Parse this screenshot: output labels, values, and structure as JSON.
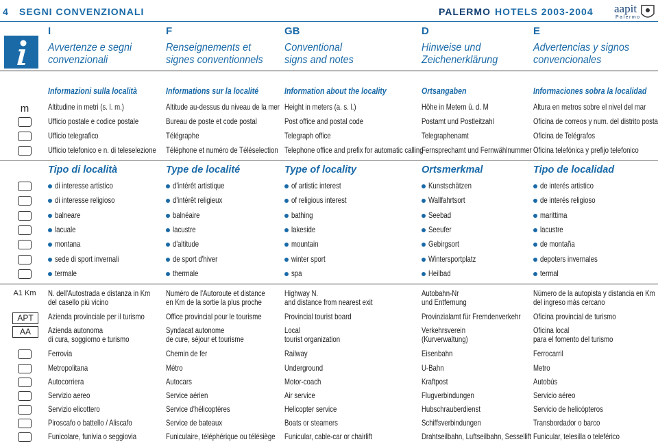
{
  "header": {
    "page_number": "4",
    "section_title": "SEGNI CONVENZIONALI",
    "publication_city": "PALERMO",
    "publication_rest": "HOTELS 2003-2004",
    "logo_text": "aapit",
    "logo_sub": "Palermo"
  },
  "languages": [
    {
      "code": "I",
      "title": "Avvertenze e segni\nconvenzionali"
    },
    {
      "code": "F",
      "title": "Renseignements et\nsignes conventionnels"
    },
    {
      "code": "GB",
      "title": "Conventional\nsigns and notes"
    },
    {
      "code": "D",
      "title": "Hinweise und\nZeichenerklärung"
    },
    {
      "code": "E",
      "title": "Advertencias y signos\nconvencionales"
    }
  ],
  "sections": [
    {
      "headings": [
        "Informazioni sulla località",
        "Informations sur la localité",
        "Information about the locality",
        "Ortsangaben",
        "Informaciones sobra la localidad"
      ],
      "rows": [
        {
          "symbol": "m",
          "cells": [
            "Altitudine in metri (s. l. m.)",
            "Altitude au-dessus du niveau de la mer",
            "Height in meters (a. s. l.)",
            "Höhe in Metern ü. d. M",
            "Altura en metros sobre el nivel del mar"
          ]
        },
        {
          "cells": [
            "Ufficio postale e codice postale",
            "Bureau de poste et code postal",
            "Post office and postal code",
            "Postamt und Postleitzahl",
            "Oficina de correos y num. del distrito postal"
          ]
        },
        {
          "cells": [
            "Ufficio telegrafico",
            "Télégraphe",
            "Telegraph office",
            "Telegraphenamt",
            "Oficina de Telégrafos"
          ]
        },
        {
          "cells": [
            "Ufficio telefonico e n. di teleselezione",
            "Téléphone et numéro de Téléselection",
            "Telephone office and prefix for automatic calling",
            "Fernsprechamt und Fernwählnummer",
            "Oficina telefónica y prefijo telefonico"
          ]
        }
      ]
    },
    {
      "headings": [
        "Tipo di località",
        "Type de localité",
        "Type of locality",
        "Ortsmerkmal",
        "Tipo de localidad"
      ],
      "bulleted": true,
      "rows": [
        {
          "cells": [
            "di interesse artistico",
            "d'intérêt artistique",
            "of artistic interest",
            "Kunstschätzen",
            "de interés artistico"
          ]
        },
        {
          "cells": [
            "di interesse religioso",
            "d'intérêt religieux",
            "of religious interest",
            "Wallfahrtsort",
            "de interés religioso"
          ]
        },
        {
          "cells": [
            "balneare",
            "balnéaire",
            "bathing",
            "Seebad",
            "marittima"
          ]
        },
        {
          "cells": [
            "lacuale",
            "lacustre",
            "lakeside",
            "Seeufer",
            "lacustre"
          ]
        },
        {
          "cells": [
            "montana",
            "d'altitude",
            "mountain",
            "Gebirgsort",
            "de montaña"
          ]
        },
        {
          "cells": [
            "sede di sport invernali",
            "de sport d'hiver",
            "winter sport",
            "Wintersportplatz",
            "depoters invernales"
          ]
        },
        {
          "cells": [
            "termale",
            "thermale",
            "spa",
            "Heilbad",
            "termal"
          ]
        }
      ]
    },
    {
      "rows": [
        {
          "symbol": "A1 Km",
          "cells": [
            "N. dell'Autostrada e distanza in Km\ndel casello più vicino",
            "Numéro de l'Autoroute et distance\nen Km de la sortie la plus proche",
            "Highway N.\nand distance from nearest exit",
            "Autobahn-Nr\nund Entfernung",
            "Número de la autopista y distancia en Km\ndel ingreso más cercano"
          ]
        },
        {
          "symbol": "APT",
          "cells": [
            "Azienda provinciale per il turismo",
            "Office provincial pour le tourisme",
            "Provincial tourist board",
            "Provinzialamt für Fremdenverkehr",
            "Oficina provincial de turismo"
          ]
        },
        {
          "symbol": "AA",
          "cells": [
            "Azienda autonoma\ndi cura, soggiorno e turismo",
            "Syndacat autonome\nde cure, séjour et tourisme",
            "Local\ntourist organization",
            "Verkehrsverein\n(Kurverwaltung)",
            "Oficina local\npara el fomento del turismo"
          ]
        },
        {
          "cells": [
            "Ferrovia",
            "Chemin de fer",
            "Railway",
            "Eisenbahn",
            "Ferrocarril"
          ]
        },
        {
          "cells": [
            "Metropolitana",
            "Métro",
            "Underground",
            "U-Bahn",
            "Metro"
          ]
        },
        {
          "cells": [
            "Autocorriera",
            "Autocars",
            "Motor-coach",
            "Kraftpost",
            "Autobús"
          ]
        },
        {
          "cells": [
            "Servizio aereo",
            "Service aérien",
            "Air service",
            "Flugverbindungen",
            "Servicio aéreo"
          ]
        },
        {
          "cells": [
            "Servizio elicottero",
            "Service d'hélicoptères",
            "Helicopter service",
            "Hubschrauberdienst",
            "Servicio de helicópteros"
          ]
        },
        {
          "cells": [
            "Piroscafo o battello / Aliscafo",
            "Service de bateaux",
            "Boats or steamers",
            "Schiffsverbindungen",
            "Transbordador o barco"
          ]
        },
        {
          "cells": [
            "Funicolare, funivia o seggiovia",
            "Funiculaire, téléphérique ou télésiège",
            "Funicular, cable-car or chairlift",
            "Drahtseilbahn, Luftseilbahn, Sessellift",
            "Funicular, telesilla o teleférico"
          ]
        }
      ]
    }
  ]
}
